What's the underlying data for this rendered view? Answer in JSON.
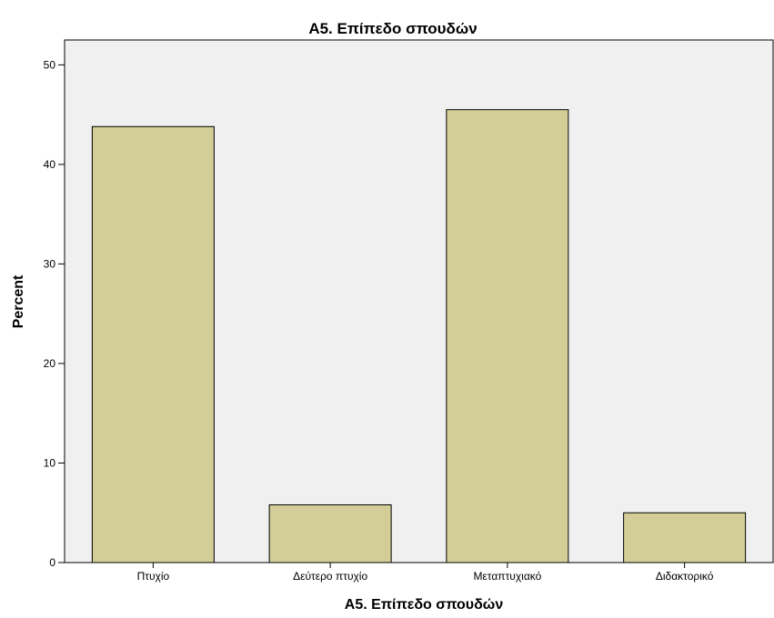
{
  "chart_data": {
    "type": "bar",
    "title": "A5. Επίπεδο σπουδών",
    "xlabel": "A5. Επίπεδο σπουδών",
    "ylabel": "Percent",
    "categories": [
      "Πτυχίο",
      "Δεύτερο πτυχίο",
      "Μεταπτυχιακό",
      "Διδακτορικό"
    ],
    "values": [
      43.8,
      5.8,
      45.5,
      5.0
    ],
    "ylim": [
      0,
      52.5
    ],
    "yticks": [
      0,
      10,
      20,
      30,
      40,
      50
    ],
    "grid": false,
    "legend": "none",
    "colors": {
      "bar_fill": "#d3ce98",
      "bar_stroke": "#000000",
      "plot_background": "#f0f0f0",
      "page_background": "#ffffff"
    }
  }
}
